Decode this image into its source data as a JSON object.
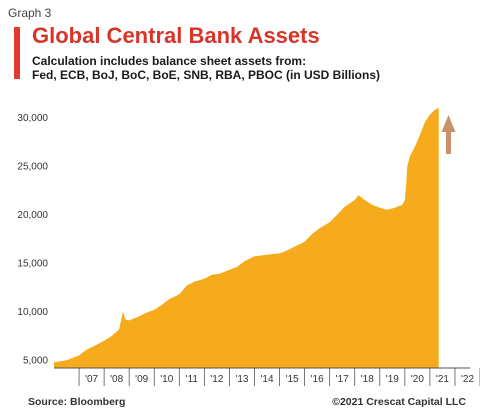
{
  "header": {
    "graph_label": "Graph 3",
    "title": "Global Central Bank Assets",
    "subtitle_line1": "Calculation includes balance sheet assets from:",
    "subtitle_line2": "Fed, ECB, BoJ, BoC, BoE, SNB, RBA, PBOC (in USD Billions)"
  },
  "footer": {
    "source": "Source: Bloomberg",
    "copyright": "©2021 Crescat Capital LLC"
  },
  "colors": {
    "area_fill": "#f5ab1b",
    "title_red": "#d8352a",
    "arrow": "#c8926a"
  },
  "annotation": {
    "arrow_icon": "up-arrow-icon",
    "direction": "up"
  },
  "chart_data": {
    "type": "area",
    "title": "Global Central Bank Assets",
    "xlabel": "",
    "ylabel": "",
    "x_tick_labels": [
      "'07",
      "'08",
      "'09",
      "'10",
      "'11",
      "'12",
      "'13",
      "'14",
      "'15",
      "'16",
      "'17",
      "'18",
      "'19",
      "'20",
      "'21",
      "'22"
    ],
    "y_tick_labels": [
      "5,000",
      "10,000",
      "15,000",
      "20,000",
      "25,000",
      "30,000"
    ],
    "y_ticks": [
      5000,
      10000,
      15000,
      20000,
      25000,
      30000
    ],
    "xlim": [
      2006.0,
      2022.6
    ],
    "ylim": [
      4200,
      31800
    ],
    "grid": false,
    "legend": "none",
    "series": [
      {
        "x": [
          2006.0,
          2006.5,
          2007.0,
          2007.3,
          2007.7,
          2008.0,
          2008.3,
          2008.6,
          2008.75,
          2008.85,
          2009.0,
          2009.3,
          2009.6,
          2010.0,
          2010.3,
          2010.6,
          2011.0,
          2011.3,
          2011.6,
          2012.0,
          2012.3,
          2012.6,
          2013.0,
          2013.3,
          2013.6,
          2014.0,
          2014.3,
          2014.6,
          2015.0,
          2015.3,
          2015.6,
          2016.0,
          2016.3,
          2016.6,
          2017.0,
          2017.3,
          2017.6,
          2018.0,
          2018.15,
          2018.4,
          2018.7,
          2019.0,
          2019.3,
          2019.6,
          2019.9,
          2020.0,
          2020.05,
          2020.1,
          2020.2,
          2020.4,
          2020.6,
          2020.8,
          2021.0,
          2021.2,
          2021.35
        ],
        "values": [
          4800,
          5000,
          5500,
          6100,
          6600,
          7000,
          7500,
          8200,
          10000,
          9200,
          9100,
          9400,
          9800,
          10200,
          10700,
          11300,
          11800,
          12700,
          13100,
          13400,
          13800,
          13900,
          14300,
          14600,
          15200,
          15700,
          15800,
          15900,
          16000,
          16300,
          16700,
          17200,
          18000,
          18600,
          19200,
          20000,
          20800,
          21500,
          22000,
          21500,
          21000,
          20700,
          20500,
          20700,
          21000,
          21500,
          23000,
          25000,
          26000,
          27000,
          28200,
          29500,
          30300,
          30800,
          31000
        ]
      }
    ]
  }
}
